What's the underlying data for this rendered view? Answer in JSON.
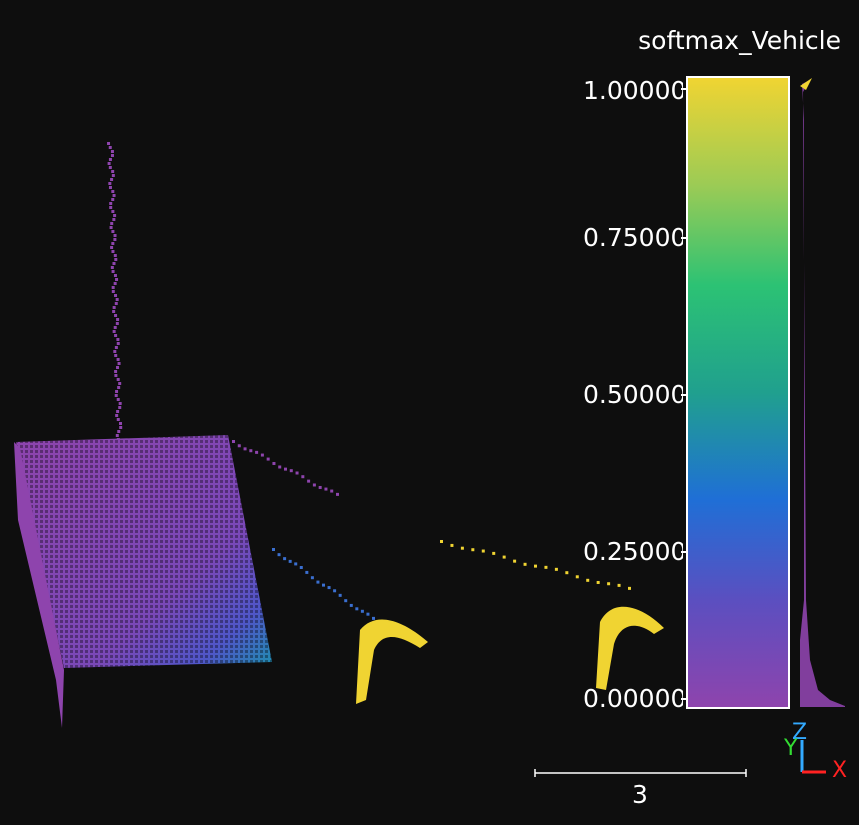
{
  "colorbar": {
    "title": "softmax_Vehicle",
    "ticks": [
      {
        "value": 1.0,
        "label": "1.00000"
      },
      {
        "value": 0.75,
        "label": "0.75000"
      },
      {
        "value": 0.5,
        "label": "0.50000"
      },
      {
        "value": 0.25,
        "label": "0.25000"
      },
      {
        "value": 0.0,
        "label": "0.00000"
      }
    ],
    "colormap": [
      "#8e44ad",
      "#5b4fc0",
      "#1f6fd6",
      "#20a08e",
      "#2cc274",
      "#9ccb55",
      "#f0d432"
    ],
    "range": [
      0,
      1
    ]
  },
  "scale_bar": {
    "label": "3"
  },
  "axes": {
    "z": {
      "label": "Z",
      "color": "#33aaff"
    },
    "y": {
      "label": "Y",
      "color": "#33dd33"
    },
    "x": {
      "label": "X",
      "color": "#ff2222"
    }
  },
  "background_color": "#0e0e0e"
}
